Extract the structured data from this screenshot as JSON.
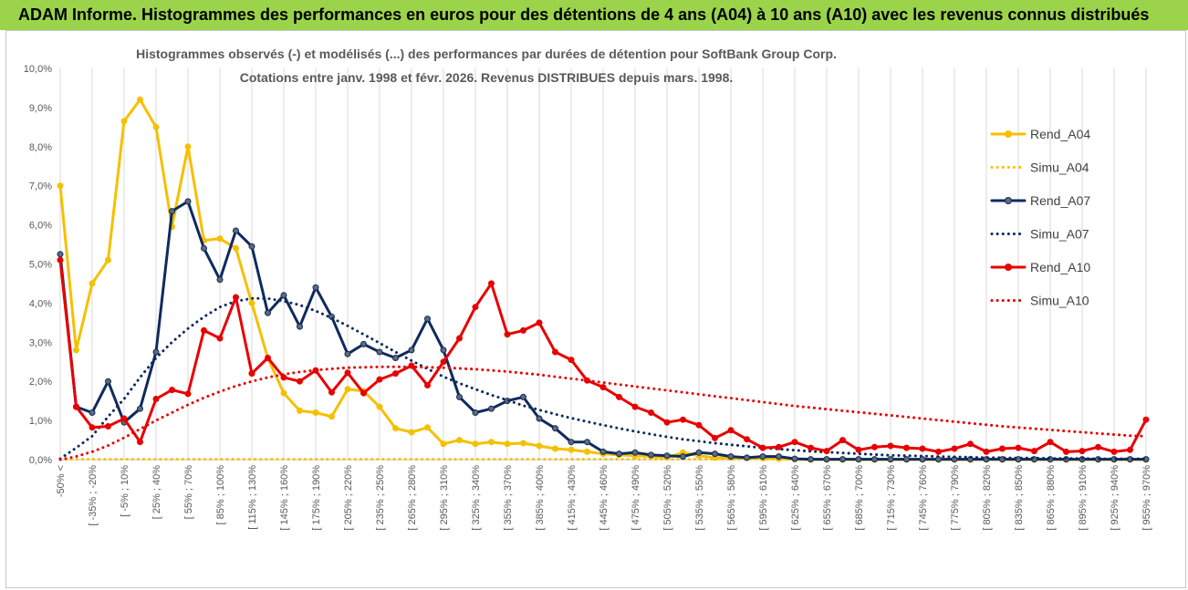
{
  "header": {
    "title": "ADAM Informe. Histogrammes des performances en euros pour des détentions de 4 ans (A04) à 10 ans (A10) avec les revenus connus distribués"
  },
  "chart_data": {
    "type": "line",
    "title": "Histogrammes observés (-) et modélisés (...) des performances par durées de détention pour SoftBank Group Corp.",
    "subtitle": "Cotations entre janv. 1998 et févr. 2026. Revenus DISTRIBUES depuis mars. 1998.",
    "xlabel": "",
    "ylabel": "",
    "ylim": [
      0,
      10
    ],
    "y_unit": "%",
    "grid": "vertical",
    "legend_position": "right",
    "y_ticks": [
      "0,0%",
      "1,0%",
      "2,0%",
      "3,0%",
      "4,0%",
      "5,0%",
      "6,0%",
      "7,0%",
      "8,0%",
      "9,0%",
      "10,0%"
    ],
    "x_tick_labels": [
      "-50% <",
      "[ -35% ; -20%",
      "[ -5% ; 10%",
      "[ 25% ; 40%",
      "[ 55% ; 70%",
      "[ 85% ; 100%",
      "[ 115% ; 130%",
      "[ 145% ; 160%",
      "[ 175% ; 190%",
      "[ 205% ; 220%",
      "[ 235% ; 250%",
      "[ 265% ; 280%",
      "[ 295% ; 310%",
      "[ 325% ; 340%",
      "[ 355% ; 370%",
      "[ 385% ; 400%",
      "[ 415% ; 430%",
      "[ 445% ; 460%",
      "[ 475% ; 490%",
      "[ 505% ; 520%",
      "[ 535% ; 550%",
      "[ 565% ; 580%",
      "[ 595% ; 610%",
      "[ 625% ; 640%",
      "[ 655% ; 670%",
      "[ 685% ; 700%",
      "[ 715% ; 730%",
      "[ 745% ; 760%",
      "[ 775% ; 790%",
      "[ 805% ; 820%",
      "[ 835% ; 850%",
      "[ 865% ; 880%",
      "[ 895% ; 910%",
      "[ 925% ; 940%",
      "[ 955% ; 970%"
    ],
    "n_bins": 69,
    "series": [
      {
        "name": "Rend_A04",
        "style": "solid",
        "color": "#f5c000",
        "values": [
          7.0,
          2.8,
          4.5,
          5.1,
          8.65,
          9.2,
          8.5,
          5.95,
          8.0,
          5.6,
          5.65,
          5.4,
          4.0,
          2.6,
          1.7,
          1.25,
          1.2,
          1.1,
          1.8,
          1.75,
          1.35,
          0.8,
          0.7,
          0.82,
          0.4,
          0.5,
          0.4,
          0.45,
          0.4,
          0.42,
          0.35,
          0.28,
          0.25,
          0.2,
          0.15,
          0.12,
          0.1,
          0.08,
          0.05,
          0.18,
          0.1,
          0.05,
          0.05,
          0.04,
          0.03,
          0.02,
          0.01,
          0.0,
          0.0,
          0.0,
          0.0,
          0.0,
          0.0,
          0.0,
          0.0,
          0.0,
          0.0,
          0.0,
          0.0,
          0.0,
          0.0,
          0.0,
          0.0,
          0.0,
          0.0,
          0.0,
          0.0,
          0.0,
          0.0
        ]
      },
      {
        "name": "Simu_A04",
        "style": "dotted",
        "color": "#f5c000",
        "values": [
          0.0,
          0.01,
          0.01,
          0.01,
          0.01,
          0.01,
          0.01,
          0.01,
          0.01,
          0.01,
          0.01,
          0.01,
          0.01,
          0.01,
          0.01,
          0.01,
          0.01,
          0.01,
          0.01,
          0.01,
          0.01,
          0.01,
          0.01,
          0.01,
          0.01,
          0.01,
          0.01,
          0.01,
          0.01,
          0.01,
          0.01,
          0.01,
          0.01,
          0.01,
          0.01,
          0.01,
          0.01,
          0.01,
          0.01,
          0.01,
          0.01,
          0.01,
          0.01,
          0.01,
          0.01,
          0.01,
          0.01,
          0.01,
          0.01,
          0.01,
          0.01,
          0.01,
          0.01,
          0.01,
          0.01,
          0.01,
          0.01,
          0.01,
          0.01,
          0.01,
          0.01,
          0.01,
          0.01,
          0.01,
          0.01,
          0.01,
          0.01,
          0.01,
          0.01
        ]
      },
      {
        "name": "Rend_A07",
        "style": "solid",
        "color": "#0f2a5e",
        "values": [
          5.25,
          1.35,
          1.2,
          2.0,
          0.95,
          1.3,
          2.75,
          6.35,
          6.6,
          5.4,
          4.6,
          5.85,
          5.45,
          3.75,
          4.2,
          3.4,
          4.4,
          3.65,
          2.7,
          2.95,
          2.75,
          2.6,
          2.8,
          3.6,
          2.8,
          1.6,
          1.2,
          1.3,
          1.5,
          1.6,
          1.05,
          0.8,
          0.45,
          0.45,
          0.2,
          0.15,
          0.18,
          0.12,
          0.1,
          0.08,
          0.18,
          0.15,
          0.08,
          0.05,
          0.08,
          0.08,
          0.02,
          0.01,
          0.01,
          0.01,
          0.01,
          0.01,
          0.01,
          0.01,
          0.01,
          0.01,
          0.01,
          0.01,
          0.01,
          0.01,
          0.01,
          0.01,
          0.01,
          0.01,
          0.01,
          0.01,
          0.01,
          0.01,
          0.01
        ]
      },
      {
        "name": "Simu_A07",
        "style": "dotted",
        "color": "#0f2a5e",
        "values": [
          0.02,
          0.3,
          0.6,
          1.1,
          1.55,
          2.1,
          2.6,
          3.0,
          3.35,
          3.65,
          3.9,
          4.05,
          4.12,
          4.12,
          4.05,
          3.95,
          3.8,
          3.62,
          3.42,
          3.2,
          2.98,
          2.75,
          2.53,
          2.32,
          2.12,
          1.95,
          1.8,
          1.65,
          1.52,
          1.38,
          1.27,
          1.16,
          1.06,
          0.97,
          0.88,
          0.8,
          0.72,
          0.65,
          0.58,
          0.52,
          0.47,
          0.42,
          0.38,
          0.34,
          0.3,
          0.27,
          0.24,
          0.21,
          0.19,
          0.17,
          0.15,
          0.13,
          0.11,
          0.1,
          0.09,
          0.08,
          0.07,
          0.06,
          0.05,
          0.05,
          0.04,
          0.04,
          0.03,
          0.03,
          0.03,
          0.02,
          0.02,
          0.02,
          0.02
        ]
      },
      {
        "name": "Rend_A10",
        "style": "solid",
        "color": "#e80000",
        "values": [
          5.1,
          1.35,
          0.82,
          0.85,
          1.05,
          0.45,
          1.55,
          1.78,
          1.68,
          3.3,
          3.1,
          4.15,
          2.2,
          2.6,
          2.1,
          2.0,
          2.28,
          1.72,
          2.22,
          1.7,
          2.05,
          2.2,
          2.4,
          1.9,
          2.5,
          3.1,
          3.9,
          4.5,
          3.2,
          3.3,
          3.5,
          2.75,
          2.55,
          2.02,
          1.85,
          1.6,
          1.35,
          1.2,
          0.95,
          1.02,
          0.88,
          0.55,
          0.75,
          0.52,
          0.3,
          0.32,
          0.45,
          0.3,
          0.22,
          0.5,
          0.25,
          0.32,
          0.35,
          0.3,
          0.28,
          0.2,
          0.28,
          0.4,
          0.2,
          0.28,
          0.3,
          0.22,
          0.45,
          0.2,
          0.22,
          0.32,
          0.2,
          0.25,
          1.02
        ]
      },
      {
        "name": "Simu_A10",
        "style": "dotted",
        "color": "#e80000",
        "values": [
          0.0,
          0.08,
          0.2,
          0.36,
          0.56,
          0.78,
          1.0,
          1.2,
          1.4,
          1.58,
          1.74,
          1.88,
          2.0,
          2.1,
          2.18,
          2.24,
          2.29,
          2.32,
          2.35,
          2.36,
          2.37,
          2.37,
          2.37,
          2.36,
          2.35,
          2.33,
          2.31,
          2.28,
          2.25,
          2.21,
          2.17,
          2.12,
          2.07,
          2.02,
          1.97,
          1.92,
          1.87,
          1.82,
          1.77,
          1.72,
          1.67,
          1.62,
          1.57,
          1.52,
          1.47,
          1.42,
          1.37,
          1.33,
          1.29,
          1.25,
          1.21,
          1.17,
          1.13,
          1.09,
          1.05,
          1.01,
          0.97,
          0.93,
          0.89,
          0.85,
          0.82,
          0.79,
          0.76,
          0.73,
          0.7,
          0.67,
          0.64,
          0.61,
          0.6
        ]
      }
    ]
  }
}
